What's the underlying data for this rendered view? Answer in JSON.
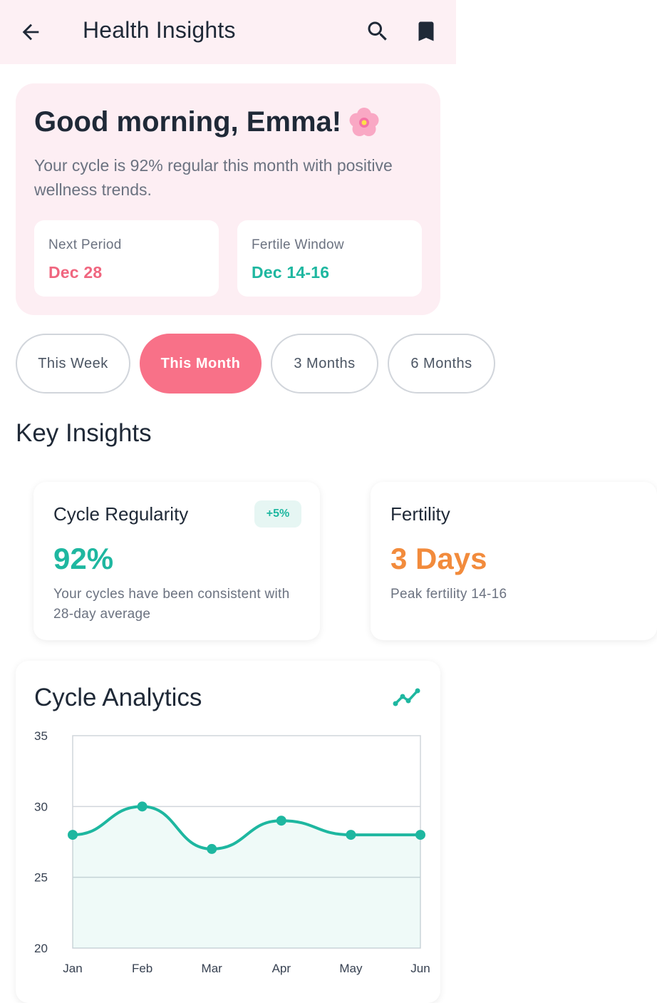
{
  "header": {
    "title": "Health Insights",
    "back_icon": "arrow-left-icon",
    "search_icon": "search-icon",
    "bookmark_icon": "bookmark-icon"
  },
  "greeting": {
    "title": "Good morning, Emma!",
    "emoji": "cherry-blossom-icon",
    "subtitle": "Your cycle is 92% regular this month with positive wellness trends.",
    "next_period": {
      "label": "Next Period",
      "value": "Dec 28",
      "color": "#f0667f"
    },
    "fertile_window": {
      "label": "Fertile Window",
      "value": "Dec 14-16",
      "color": "#1eb7a0"
    }
  },
  "filters": {
    "options": [
      "This Week",
      "This Month",
      "3 Months",
      "6 Months"
    ],
    "selected": "This Month"
  },
  "key_insights": {
    "title": "Key Insights",
    "cards": [
      {
        "title": "Cycle Regularity",
        "value": "92%",
        "badge": "+5%",
        "description": "Your cycles have been consistent with 28-day average",
        "color": "#1eb7a0"
      },
      {
        "title": "Fertility",
        "value": "3 Days",
        "description": "Peak fertility 14-16",
        "color": "#f28b3c"
      }
    ]
  },
  "analytics": {
    "title": "Cycle Analytics",
    "trend_icon": "trending-icon"
  },
  "chart_data": {
    "type": "area",
    "categories": [
      "Jan",
      "Feb",
      "Mar",
      "Apr",
      "May",
      "Jun"
    ],
    "series": [
      {
        "values": [
          28,
          30,
          27,
          29,
          28,
          28
        ]
      }
    ],
    "ylim": [
      20,
      35
    ],
    "yticks": [
      35,
      30,
      25,
      20
    ],
    "grid": true,
    "color": "#1eb7a0"
  }
}
